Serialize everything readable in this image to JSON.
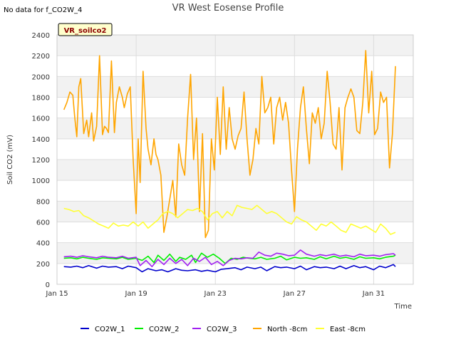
{
  "no_data_note": "No data for f_CO2W_4",
  "badge": {
    "label": "VR_soilco2",
    "bg": "#ffffcc",
    "text_color": "#8b0000"
  },
  "chart_data": {
    "type": "line",
    "title": "VR West Eosense Profile",
    "xlabel": "Time",
    "ylabel": "Soil CO2 (mV)",
    "ylim": [
      0,
      2400
    ],
    "xlim_days": [
      "Jan 15",
      "Feb 2"
    ],
    "yticks": [
      0,
      200,
      400,
      600,
      800,
      1000,
      1200,
      1400,
      1600,
      1800,
      2000,
      2200,
      2400
    ],
    "xticks": [
      {
        "label": "Jan 15",
        "day": 15
      },
      {
        "label": "Jan 19",
        "day": 19
      },
      {
        "label": "Jan 23",
        "day": 23
      },
      {
        "label": "Jan 27",
        "day": 27
      },
      {
        "label": "Jan 31",
        "day": 31
      }
    ],
    "grid": true,
    "background_bands": "alternating light gray",
    "legend_position": "bottom",
    "series": [
      {
        "name": "CO2W_1",
        "color": "#0000cc",
        "x": [
          15.35,
          15.7,
          16,
          16.3,
          16.6,
          17,
          17.3,
          17.6,
          18,
          18.3,
          18.6,
          19,
          19.3,
          19.6,
          20,
          20.3,
          20.6,
          21,
          21.3,
          21.6,
          22,
          22.3,
          22.6,
          23,
          23.3,
          23.6,
          24,
          24.3,
          24.6,
          25,
          25.3,
          25.6,
          26,
          26.3,
          26.6,
          27,
          27.3,
          27.6,
          28,
          28.3,
          28.6,
          29,
          29.3,
          29.6,
          30,
          30.3,
          30.6,
          31,
          31.3,
          31.6,
          32,
          32.1
        ],
        "y": [
          170,
          165,
          175,
          160,
          180,
          155,
          175,
          165,
          170,
          150,
          175,
          160,
          120,
          150,
          130,
          140,
          120,
          150,
          135,
          130,
          140,
          125,
          135,
          120,
          145,
          150,
          160,
          140,
          165,
          150,
          165,
          130,
          170,
          160,
          165,
          150,
          175,
          140,
          170,
          160,
          165,
          150,
          175,
          150,
          180,
          160,
          170,
          140,
          175,
          160,
          190,
          170
        ]
      },
      {
        "name": "CO2W_2",
        "color": "#00ee00",
        "x": [
          15.35,
          15.7,
          16,
          16.3,
          16.6,
          17,
          17.3,
          17.6,
          18,
          18.3,
          18.6,
          19,
          19.3,
          19.6,
          19.9,
          20.1,
          20.4,
          20.7,
          21,
          21.2,
          21.5,
          21.8,
          22,
          22.3,
          22.6,
          22.9,
          23.2,
          23.5,
          23.8,
          24.1,
          24.4,
          24.7,
          25,
          25.3,
          25.6,
          26,
          26.3,
          26.6,
          27,
          27.3,
          27.6,
          28,
          28.3,
          28.6,
          29,
          29.3,
          29.6,
          30,
          30.3,
          30.6,
          31,
          31.3,
          31.6,
          32,
          32.1
        ],
        "y": [
          250,
          255,
          245,
          260,
          250,
          240,
          255,
          250,
          245,
          260,
          240,
          250,
          230,
          270,
          210,
          280,
          230,
          290,
          220,
          260,
          240,
          280,
          210,
          300,
          260,
          290,
          250,
          200,
          250,
          240,
          260,
          250,
          245,
          260,
          240,
          250,
          270,
          235,
          260,
          250,
          255,
          240,
          265,
          245,
          270,
          250,
          260,
          240,
          265,
          250,
          255,
          245,
          260,
          270,
          280
        ]
      },
      {
        "name": "CO2W_3",
        "color": "#a020f0",
        "x": [
          15.35,
          15.7,
          16,
          16.3,
          16.6,
          17,
          17.3,
          17.6,
          18,
          18.3,
          18.6,
          19,
          19.2,
          19.5,
          19.8,
          20.1,
          20.4,
          20.7,
          21,
          21.3,
          21.6,
          21.9,
          22.2,
          22.5,
          22.8,
          23.1,
          23.4,
          23.7,
          24,
          24.3,
          24.6,
          24.9,
          25.2,
          25.5,
          25.8,
          26.1,
          26.4,
          26.7,
          27,
          27.3,
          27.6,
          28,
          28.3,
          28.6,
          29,
          29.3,
          29.6,
          30,
          30.3,
          30.6,
          31,
          31.3,
          31.6,
          32,
          32.1
        ],
        "y": [
          265,
          270,
          260,
          275,
          265,
          255,
          270,
          260,
          255,
          270,
          250,
          260,
          180,
          230,
          170,
          240,
          190,
          250,
          200,
          240,
          180,
          250,
          220,
          260,
          190,
          220,
          180,
          230,
          250,
          245,
          255,
          250,
          310,
          280,
          270,
          300,
          290,
          275,
          280,
          330,
          290,
          270,
          285,
          275,
          290,
          270,
          280,
          265,
          290,
          275,
          280,
          270,
          285,
          295,
          280
        ]
      },
      {
        "name": "North -8cm",
        "color": "#ffa500",
        "x": [
          15.35,
          15.5,
          15.65,
          15.8,
          15.9,
          16,
          16.1,
          16.2,
          16.35,
          16.5,
          16.6,
          16.75,
          16.85,
          17,
          17.15,
          17.3,
          17.4,
          17.5,
          17.6,
          17.75,
          17.9,
          18,
          18.15,
          18.3,
          18.4,
          18.55,
          18.7,
          18.85,
          19,
          19.1,
          19.2,
          19.35,
          19.5,
          19.6,
          19.75,
          19.9,
          20,
          20.1,
          20.25,
          20.4,
          20.55,
          20.7,
          20.85,
          21,
          21.15,
          21.3,
          21.45,
          21.6,
          21.75,
          21.9,
          22.05,
          22.2,
          22.35,
          22.5,
          22.65,
          22.8,
          22.95,
          23.1,
          23.25,
          23.4,
          23.55,
          23.7,
          23.85,
          24,
          24.15,
          24.3,
          24.45,
          24.6,
          24.75,
          24.9,
          25.05,
          25.2,
          25.35,
          25.5,
          25.65,
          25.8,
          25.95,
          26.1,
          26.25,
          26.4,
          26.55,
          26.7,
          26.85,
          27,
          27.15,
          27.3,
          27.45,
          27.6,
          27.75,
          27.9,
          28.05,
          28.2,
          28.35,
          28.5,
          28.65,
          28.8,
          28.95,
          29.1,
          29.25,
          29.4,
          29.55,
          29.7,
          29.85,
          30,
          30.15,
          30.3,
          30.45,
          30.6,
          30.75,
          30.9,
          31.05,
          31.2,
          31.35,
          31.5,
          31.65,
          31.8,
          31.95,
          32.1
        ],
        "y": [
          1680,
          1750,
          1850,
          1820,
          1600,
          1420,
          1900,
          1980,
          1450,
          1580,
          1420,
          1650,
          1380,
          1520,
          2200,
          1440,
          1520,
          1500,
          1460,
          2150,
          1460,
          1750,
          1900,
          1800,
          1700,
          1830,
          1900,
          1200,
          680,
          1400,
          980,
          2050,
          1500,
          1300,
          1150,
          1400,
          1250,
          1200,
          1050,
          500,
          650,
          820,
          1000,
          650,
          1350,
          1150,
          1050,
          1600,
          2020,
          1200,
          1600,
          700,
          1450,
          450,
          520,
          1400,
          1100,
          1800,
          1250,
          1900,
          1300,
          1700,
          1400,
          1300,
          1430,
          1500,
          1850,
          1400,
          1050,
          1200,
          1500,
          1350,
          2000,
          1650,
          1700,
          1800,
          1350,
          1700,
          1800,
          1580,
          1750,
          1550,
          1100,
          700,
          1300,
          1700,
          1900,
          1500,
          1160,
          1650,
          1550,
          1700,
          1400,
          1550,
          2050,
          1750,
          1350,
          1300,
          1700,
          1100,
          1700,
          1800,
          1880,
          1800,
          1480,
          1450,
          1750,
          2250,
          1650,
          2050,
          1440,
          1500,
          1850,
          1750,
          1800,
          1120,
          1450,
          2100
        ]
      },
      {
        "name": "East -8cm",
        "color": "#ffff33",
        "x": [
          15.35,
          15.6,
          15.85,
          16.1,
          16.35,
          16.6,
          16.85,
          17.1,
          17.35,
          17.6,
          17.85,
          18.1,
          18.35,
          18.6,
          18.85,
          19.1,
          19.35,
          19.6,
          19.85,
          20.1,
          20.35,
          20.6,
          20.85,
          21.1,
          21.35,
          21.6,
          21.85,
          22.1,
          22.35,
          22.6,
          22.85,
          23.1,
          23.35,
          23.6,
          23.85,
          24.1,
          24.35,
          24.6,
          24.85,
          25.1,
          25.35,
          25.6,
          25.85,
          26.1,
          26.35,
          26.6,
          26.85,
          27.1,
          27.35,
          27.6,
          27.85,
          28.1,
          28.35,
          28.6,
          28.85,
          29.1,
          29.35,
          29.6,
          29.85,
          30.1,
          30.35,
          30.6,
          30.85,
          31.1,
          31.35,
          31.6,
          31.85,
          32.1
        ],
        "y": [
          730,
          720,
          700,
          710,
          660,
          640,
          610,
          580,
          560,
          540,
          590,
          560,
          570,
          560,
          600,
          560,
          600,
          540,
          580,
          620,
          680,
          700,
          680,
          640,
          680,
          720,
          710,
          730,
          700,
          620,
          680,
          700,
          640,
          700,
          660,
          760,
          740,
          730,
          720,
          760,
          720,
          680,
          700,
          680,
          640,
          600,
          580,
          650,
          620,
          600,
          560,
          520,
          580,
          560,
          600,
          560,
          520,
          500,
          580,
          560,
          540,
          560,
          530,
          500,
          580,
          540,
          480,
          500
        ]
      }
    ]
  }
}
